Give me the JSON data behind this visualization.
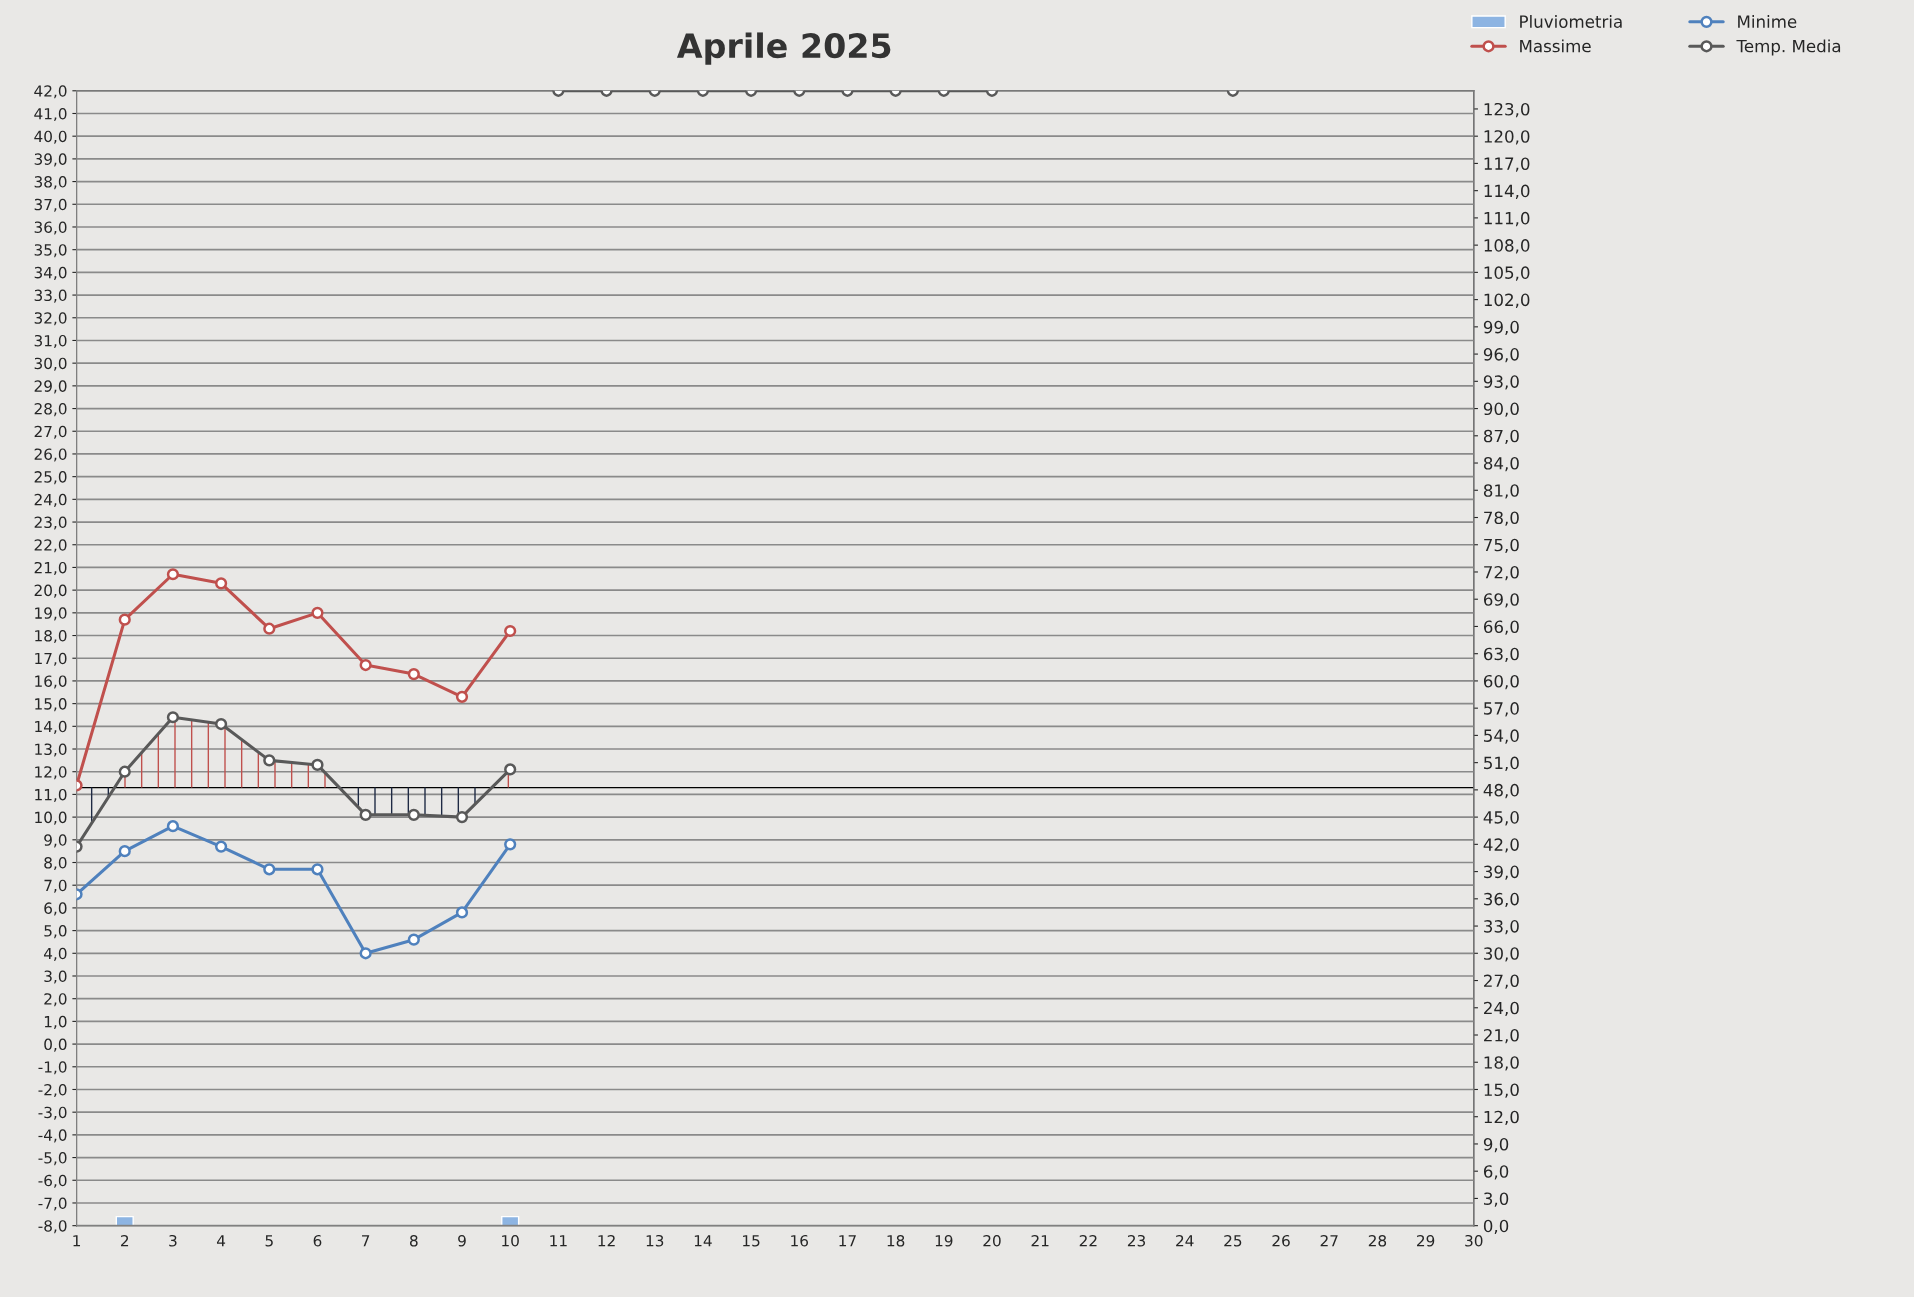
{
  "chart_data": {
    "type": "line",
    "title": "Aprile 2025",
    "categories": [
      "1",
      "2",
      "3",
      "4",
      "5",
      "6",
      "7",
      "8",
      "9",
      "10",
      "11",
      "12",
      "13",
      "14",
      "15",
      "16",
      "17",
      "18",
      "19",
      "20",
      "21",
      "22",
      "23",
      "24",
      "25",
      "26",
      "27",
      "28",
      "29",
      "30"
    ],
    "series": [
      {
        "name": "Pluviometria",
        "type": "bar",
        "axis": "y2",
        "color": "#8db4e2",
        "values": [
          null,
          1,
          null,
          null,
          null,
          null,
          null,
          null,
          null,
          1,
          null,
          null,
          null,
          null,
          null,
          null,
          null,
          null,
          null,
          null,
          null,
          null,
          null,
          null,
          null,
          null,
          null,
          null,
          null,
          null
        ]
      },
      {
        "name": "Massime",
        "color": "#c0504d",
        "values": [
          11.4,
          18.7,
          20.7,
          20.3,
          18.3,
          19.0,
          16.7,
          16.3,
          15.3,
          18.2,
          null,
          null,
          null,
          null,
          null,
          null,
          null,
          null,
          null,
          null,
          null,
          null,
          null,
          null,
          null,
          null,
          null,
          null,
          null,
          null
        ]
      },
      {
        "name": "Minime",
        "color": "#4f81bd",
        "values": [
          6.6,
          8.5,
          9.6,
          8.7,
          7.7,
          7.7,
          4.0,
          4.6,
          5.8,
          8.8,
          null,
          null,
          null,
          null,
          null,
          null,
          null,
          null,
          null,
          null,
          null,
          null,
          null,
          null,
          null,
          null,
          null,
          null,
          null,
          null
        ]
      },
      {
        "name": "Temp. Media",
        "color": "#595959",
        "values": [
          8.7,
          12.0,
          14.4,
          14.1,
          12.5,
          12.3,
          10.1,
          10.1,
          10.0,
          12.1,
          null,
          null,
          null,
          null,
          null,
          null,
          null,
          null,
          null,
          null,
          null,
          null,
          null,
          null,
          null,
          null,
          null,
          null,
          null,
          null
        ]
      },
      {
        "color": "#595959",
        "values": [
          null,
          null,
          null,
          null,
          null,
          null,
          null,
          null,
          null,
          null,
          42,
          42,
          42,
          42,
          42,
          42,
          42,
          42,
          42,
          42,
          null,
          null,
          null,
          null,
          42,
          null,
          null,
          null,
          null,
          null
        ]
      }
    ],
    "ref_lines": [
      {
        "axis": "y",
        "value": 11.3,
        "color": "#000000"
      }
    ],
    "ylim": [
      -8,
      42
    ],
    "yticks": [
      {
        "value": -8,
        "label": "-8,0"
      },
      {
        "value": -7,
        "label": "-7,0"
      },
      {
        "value": -6,
        "label": "-6,0"
      },
      {
        "value": -5,
        "label": "-5,0"
      },
      {
        "value": -4,
        "label": "-4,0"
      },
      {
        "value": -3,
        "label": "-3,0"
      },
      {
        "value": -2,
        "label": "-2,0"
      },
      {
        "value": -1,
        "label": "-1,0"
      },
      {
        "value": 0,
        "label": "0,0"
      },
      {
        "value": 1,
        "label": "1,0"
      },
      {
        "value": 2,
        "label": "2,0"
      },
      {
        "value": 3,
        "label": "3,0"
      },
      {
        "value": 4,
        "label": "4,0"
      },
      {
        "value": 5,
        "label": "5,0"
      },
      {
        "value": 6,
        "label": "6,0"
      },
      {
        "value": 7,
        "label": "7,0"
      },
      {
        "value": 8,
        "label": "8,0"
      },
      {
        "value": 9,
        "label": "9,0"
      },
      {
        "value": 10,
        "label": "10,0"
      },
      {
        "value": 11,
        "label": "11,0"
      },
      {
        "value": 12,
        "label": "12,0"
      },
      {
        "value": 13,
        "label": "13,0"
      },
      {
        "value": 14,
        "label": "14,0"
      },
      {
        "value": 15,
        "label": "15,0"
      },
      {
        "value": 16,
        "label": "16,0"
      },
      {
        "value": 17,
        "label": "17,0"
      },
      {
        "value": 18,
        "label": "18,0"
      },
      {
        "value": 19,
        "label": "19,0"
      },
      {
        "value": 20,
        "label": "20,0"
      },
      {
        "value": 21,
        "label": "21,0"
      },
      {
        "value": 22,
        "label": "22,0"
      },
      {
        "value": 23,
        "label": "23,0"
      },
      {
        "value": 24,
        "label": "24,0"
      },
      {
        "value": 25,
        "label": "25,0"
      },
      {
        "value": 26,
        "label": "26,0"
      },
      {
        "value": 27,
        "label": "27,0"
      },
      {
        "value": 28,
        "label": "28,0"
      },
      {
        "value": 29,
        "label": "29,0"
      },
      {
        "value": 30,
        "label": "30,0"
      },
      {
        "value": 31,
        "label": "31,0"
      },
      {
        "value": 32,
        "label": "32,0"
      },
      {
        "value": 33,
        "label": "33,0"
      },
      {
        "value": 34,
        "label": "34,0"
      },
      {
        "value": 35,
        "label": "35,0"
      },
      {
        "value": 36,
        "label": "36,0"
      },
      {
        "value": 37,
        "label": "37,0"
      },
      {
        "value": 38,
        "label": "38,0"
      },
      {
        "value": 39,
        "label": "39,0"
      },
      {
        "value": 40,
        "label": "40,0"
      },
      {
        "value": 41,
        "label": "41,0"
      },
      {
        "value": 42,
        "label": "42,0"
      }
    ],
    "y2lim": [
      0,
      125
    ],
    "y2ticks": [
      {
        "value": 0,
        "label": "0,0"
      },
      {
        "value": 3,
        "label": "3,0"
      },
      {
        "value": 6,
        "label": "6,0"
      },
      {
        "value": 9,
        "label": "9,0"
      },
      {
        "value": 12,
        "label": "12,0"
      },
      {
        "value": 15,
        "label": "15,0"
      },
      {
        "value": 18,
        "label": "18,0"
      },
      {
        "value": 21,
        "label": "21,0"
      },
      {
        "value": 24,
        "label": "24,0"
      },
      {
        "value": 27,
        "label": "27,0"
      },
      {
        "value": 30,
        "label": "30,0"
      },
      {
        "value": 33,
        "label": "33,0"
      },
      {
        "value": 36,
        "label": "36,0"
      },
      {
        "value": 39,
        "label": "39,0"
      },
      {
        "value": 42,
        "label": "42,0"
      },
      {
        "value": 45,
        "label": "45,0"
      },
      {
        "value": 48,
        "label": "48,0"
      },
      {
        "value": 51,
        "label": "51,0"
      },
      {
        "value": 54,
        "label": "54,0"
      },
      {
        "value": 57,
        "label": "57,0"
      },
      {
        "value": 60,
        "label": "60,0"
      },
      {
        "value": 63,
        "label": "63,0"
      },
      {
        "value": 66,
        "label": "66,0"
      },
      {
        "value": 69,
        "label": "69,0"
      },
      {
        "value": 72,
        "label": "72,0"
      },
      {
        "value": 75,
        "label": "75,0"
      },
      {
        "value": 78,
        "label": "78,0"
      },
      {
        "value": 81,
        "label": "81,0"
      },
      {
        "value": 84,
        "label": "84,0"
      },
      {
        "value": 87,
        "label": "87,0"
      },
      {
        "value": 90,
        "label": "90,0"
      },
      {
        "value": 93,
        "label": "93,0"
      },
      {
        "value": 96,
        "label": "96,0"
      },
      {
        "value": 99,
        "label": "99,0"
      },
      {
        "value": 102,
        "label": "102,0"
      },
      {
        "value": 105,
        "label": "105,0"
      },
      {
        "value": 108,
        "label": "108,0"
      },
      {
        "value": 111,
        "label": "111,0"
      },
      {
        "value": 114,
        "label": "114,0"
      },
      {
        "value": 117,
        "label": "117,0"
      },
      {
        "value": 120,
        "label": "120,0"
      },
      {
        "value": 123,
        "label": "123,0"
      }
    ],
    "grid": "y",
    "legend": "top right",
    "marker": "circle",
    "line_style": "solid"
  }
}
